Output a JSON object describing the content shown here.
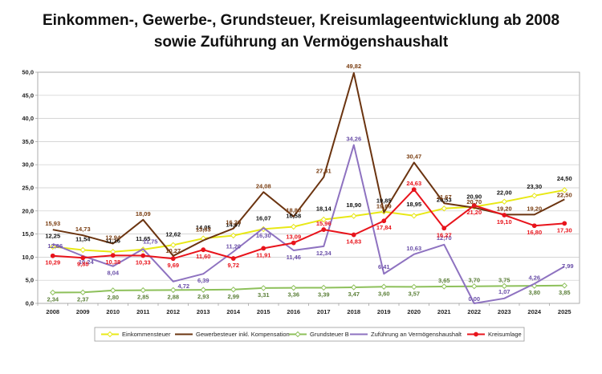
{
  "chart_data": {
    "type": "line",
    "title": "Einkommen-, Gewerbe-, Grundsteuer, Kreisumlageentwicklung ab 2008",
    "subtitle": "sowie Zuführung an Vermögenshaushalt",
    "x": [
      "2008",
      "2009",
      "2010",
      "2011",
      "2012",
      "2013",
      "2014",
      "2015",
      "2016",
      "2017",
      "2018",
      "2019",
      "2020",
      "2021",
      "2022",
      "2023",
      "2024",
      "2025"
    ],
    "ylim": [
      0,
      50
    ],
    "yticks": [
      "0,0",
      "5,0",
      "10,0",
      "15,0",
      "20,0",
      "25,0",
      "30,0",
      "35,0",
      "40,0",
      "45,0",
      "50,0"
    ],
    "grid": true,
    "legend_position": "bottom",
    "series": [
      {
        "name": "Einkommensteuer",
        "color": "#e8e816",
        "label_color": "#111111",
        "marker": "diamond",
        "values": [
          12.25,
          11.54,
          11.16,
          11.65,
          12.62,
          14.05,
          14.67,
          16.07,
          16.58,
          18.14,
          18.9,
          19.85,
          18.95,
          20.53,
          20.9,
          22.0,
          23.3,
          24.5
        ],
        "labels": [
          "12,25",
          "11,54",
          "11,16",
          "11,65",
          "12,62",
          "14,05",
          "14,67",
          "16,07",
          "16,58",
          "18,14",
          "18,90",
          "19,85",
          "18,95",
          "20,53",
          "20,90",
          "22,00",
          "23,30",
          "24,50"
        ]
      },
      {
        "name": "Gewerbesteuer inkl. Kompensation",
        "color": "#6b3410",
        "label_color": "#7a3e12",
        "marker": "none",
        "values": [
          15.93,
          14.73,
          12.94,
          18.09,
          10.27,
          13.63,
          16.2,
          24.08,
          18.8,
          27.31,
          49.82,
          19.69,
          30.47,
          21.67,
          20.7,
          19.2,
          19.2,
          22.5
        ],
        "labels": [
          "15,93",
          "14,73",
          "12,94",
          "18,09",
          "10,27",
          "13,63",
          "16,20",
          "24,08",
          "18,80",
          "27,31",
          "49,82",
          "19,69",
          "30,47",
          "21,67",
          "20,70",
          "19,20",
          "19,20",
          "22,50"
        ]
      },
      {
        "name": "Grundsteuer B",
        "color": "#8dc05a",
        "label_color": "#5b7f38",
        "marker": "diamond",
        "values": [
          2.34,
          2.37,
          2.8,
          2.85,
          2.88,
          2.93,
          2.99,
          3.31,
          3.36,
          3.39,
          3.47,
          3.6,
          3.57,
          3.65,
          3.7,
          3.75,
          3.8,
          3.85
        ],
        "labels": [
          "2,34",
          "2,37",
          "2,80",
          "2,85",
          "2,88",
          "2,93",
          "2,99",
          "3,31",
          "3,36",
          "3,39",
          "3,47",
          "3,60",
          "3,57",
          "3,65",
          "3,70",
          "3,75",
          "3,80",
          "3,85"
        ]
      },
      {
        "name": "Zuführung an Vermögenshaushalt",
        "color": "#8e72c0",
        "label_color": "#6a4fa8",
        "marker": "none",
        "values": [
          12.86,
          10.24,
          8.04,
          11.75,
          4.72,
          6.39,
          11.2,
          16.3,
          11.46,
          12.34,
          34.26,
          6.41,
          10.63,
          12.7,
          0.0,
          1.07,
          4.26,
          7.99
        ],
        "labels": [
          "12,86",
          "10,24",
          "8,04",
          "11,75",
          "4,72",
          "6,39",
          "11,20",
          "16,30",
          "11,46",
          "12,34",
          "34,26",
          "6,41",
          "10,63",
          "12,70",
          "0,00",
          "1,07",
          "4,26",
          "7,99"
        ]
      },
      {
        "name": "Kreisumlage",
        "color": "#e8141c",
        "label_color": "#e8141c",
        "marker": "circle",
        "values": [
          10.29,
          9.85,
          10.38,
          10.33,
          9.69,
          11.6,
          9.72,
          11.91,
          13.09,
          15.96,
          14.83,
          17.84,
          24.63,
          16.27,
          21.2,
          19.1,
          16.8,
          17.3
        ],
        "labels": [
          "10,29",
          "9,85",
          "10,38",
          "10,33",
          "9,69",
          "11,60",
          "9,72",
          "11,91",
          "13,09",
          "15,96",
          "14,83",
          "17,84",
          "24,63",
          "16,27",
          "21,20",
          "19,10",
          "16,80",
          "17,30"
        ]
      }
    ]
  }
}
